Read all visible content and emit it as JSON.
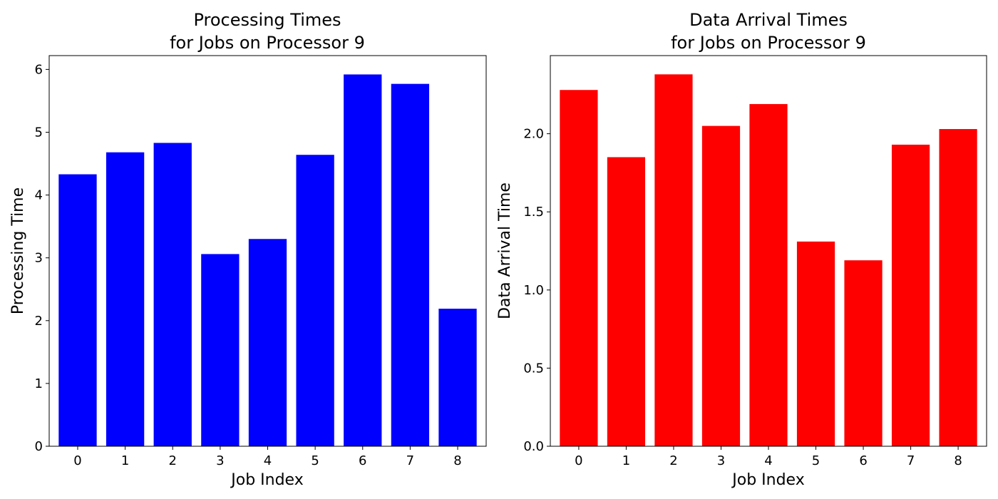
{
  "chart_data": [
    {
      "type": "bar",
      "title_lines": [
        "Processing Times",
        "for Jobs on Processor 9"
      ],
      "xlabel": "Job Index",
      "ylabel": "Processing Time",
      "categories": [
        "0",
        "1",
        "2",
        "3",
        "4",
        "5",
        "6",
        "7",
        "8"
      ],
      "values": [
        4.33,
        4.68,
        4.83,
        3.06,
        3.3,
        4.64,
        5.92,
        5.77,
        2.19
      ],
      "ylim": [
        0,
        6.22
      ],
      "yticks": [
        0,
        1,
        2,
        3,
        4,
        5,
        6
      ],
      "ytick_labels": [
        "0",
        "1",
        "2",
        "3",
        "4",
        "5",
        "6"
      ],
      "color": "#0000ff",
      "grid": false
    },
    {
      "type": "bar",
      "title_lines": [
        "Data Arrival Times",
        "for Jobs on Processor 9"
      ],
      "xlabel": "Job Index",
      "ylabel": "Data Arrival Time",
      "categories": [
        "0",
        "1",
        "2",
        "3",
        "4",
        "5",
        "6",
        "7",
        "8"
      ],
      "values": [
        2.28,
        1.85,
        2.38,
        2.05,
        2.19,
        1.31,
        1.19,
        1.93,
        2.03
      ],
      "ylim": [
        0,
        2.5
      ],
      "yticks": [
        0,
        0.5,
        1.0,
        1.5,
        2.0
      ],
      "ytick_labels": [
        "0.0",
        "0.5",
        "1.0",
        "1.5",
        "2.0"
      ],
      "color": "#ff0000",
      "grid": false
    }
  ]
}
